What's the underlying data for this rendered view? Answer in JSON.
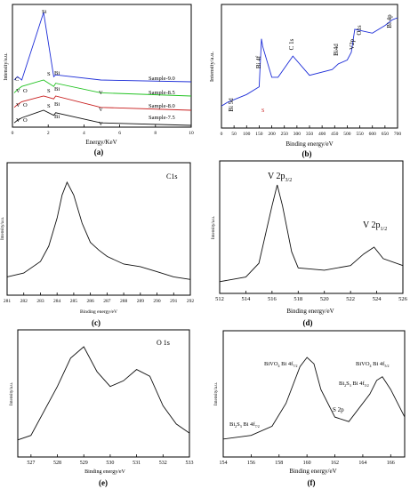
{
  "panels": [
    {
      "id": "a",
      "label": "(a)",
      "type": "line",
      "xlabel": "Energy/KeV",
      "ylabel": "Intensity/a.u.",
      "xlim": [
        0,
        10
      ],
      "xticks": [
        0,
        2,
        4,
        6,
        8,
        10
      ],
      "series": [
        {
          "name": "Sample-9.0",
          "color": "#1f2fd8"
        },
        {
          "name": "Sample-8.5",
          "color": "#22c322"
        },
        {
          "name": "Sample-8.0",
          "color": "#c81d1d"
        },
        {
          "name": "Sample-7.5",
          "color": "#111111"
        }
      ],
      "peak_labels": [
        "Si",
        "S",
        "Bi",
        "C",
        "V",
        "O",
        "V",
        "O",
        "V",
        "O",
        "S",
        "Bi",
        "S",
        "Bi",
        "Bi",
        "V",
        "V",
        "V"
      ]
    },
    {
      "id": "b",
      "label": "(b)",
      "type": "line",
      "xlabel": "Binding energy/eV",
      "ylabel": "Intensity/a.u.",
      "xlim": [
        0,
        700
      ],
      "xticks": [
        0,
        50,
        100,
        150,
        200,
        250,
        300,
        350,
        400,
        450,
        500,
        550,
        600,
        650,
        700
      ],
      "series": [
        {
          "color": "#1f2fd8"
        }
      ],
      "peak_labels": [
        "Bi 5d",
        "Bi 4f",
        "S",
        "C 1s",
        "Bi4d",
        "V2p",
        "O1s",
        "Bi 4p"
      ]
    },
    {
      "id": "c",
      "label": "(c)",
      "title": "C1s",
      "type": "line",
      "xlabel": "Binding energy/eV",
      "ylabel": "Intensity/a.u.",
      "xlim": [
        281,
        292
      ],
      "xticks": [
        281,
        282,
        283,
        284,
        285,
        286,
        287,
        288,
        289,
        290,
        291,
        292
      ],
      "peak_center": 284.6
    },
    {
      "id": "d",
      "label": "(d)",
      "type": "line",
      "xlabel": "Binding energy/eV",
      "ylabel": "Intensity/a.u.",
      "xlim": [
        512,
        526
      ],
      "xticks": [
        512,
        514,
        516,
        518,
        520,
        522,
        524,
        526
      ],
      "peak_labels": [
        {
          "main": "V 2p",
          "sub": "3/2"
        },
        {
          "main": "V 2p",
          "sub": "1/2"
        }
      ]
    },
    {
      "id": "e",
      "label": "(e)",
      "title": "O 1s",
      "type": "line",
      "xlabel": "Binding energy/eV",
      "ylabel": "Intensity/a.u.",
      "xlim": [
        526.5,
        533
      ],
      "xticks": [
        527,
        528,
        529,
        530,
        531,
        532,
        533
      ]
    },
    {
      "id": "f",
      "label": "(f)",
      "type": "line",
      "xlabel": "Binding energy/eV",
      "ylabel": "Intensity/a.u.",
      "xlim": [
        154,
        167
      ],
      "xticks": [
        154,
        156,
        158,
        160,
        162,
        164,
        166
      ],
      "peak_labels": [
        {
          "main": "BiVO",
          "sub": "4",
          "tail": " Bi 4f",
          "sub2": "7/2"
        },
        {
          "main": "BiVO",
          "sub": "4",
          "tail": " Bi 4f",
          "sub2": "5/2"
        },
        {
          "main": "Bi",
          "sub": "2",
          "mid": "S",
          "sub3": "3",
          "tail": " Bi 4f",
          "sub2": "7/2"
        },
        {
          "main": "Bi",
          "sub": "2",
          "mid": "S",
          "sub3": "3",
          "tail": " Bi 4f",
          "sub2": "5/2"
        },
        {
          "main": "S 2p"
        }
      ]
    }
  ],
  "chart_data": [
    {
      "type": "line",
      "panel": "a",
      "xlabel": "Energy/KeV",
      "ylabel": "Intensity/a.u.",
      "xlim": [
        0,
        10
      ],
      "series": [
        {
          "name": "Sample-9.0",
          "x": [
            0.1,
            0.28,
            0.52,
            1.74,
            2.31,
            2.42,
            4.95,
            10
          ],
          "y": [
            1,
            3,
            1,
            40,
            3,
            4,
            1,
            0
          ]
        },
        {
          "name": "Sample-8.5",
          "x": [
            0.1,
            0.28,
            0.52,
            1.74,
            2.31,
            2.42,
            4.95,
            10
          ],
          "y": [
            1,
            2,
            3,
            5,
            3,
            4,
            1,
            0
          ]
        },
        {
          "name": "Sample-8.0",
          "x": [
            0.1,
            0.28,
            0.52,
            1.74,
            2.31,
            2.42,
            4.95,
            10
          ],
          "y": [
            1,
            2,
            3,
            5,
            4,
            5,
            1,
            0
          ]
        },
        {
          "name": "Sample-7.5",
          "x": [
            0.1,
            0.28,
            0.52,
            1.74,
            2.31,
            2.42,
            4.95,
            10
          ],
          "y": [
            1,
            2,
            3,
            6,
            4,
            5,
            1,
            0
          ]
        }
      ]
    },
    {
      "type": "line",
      "panel": "b",
      "xlabel": "Binding energy/eV",
      "ylabel": "Intensity/a.u.",
      "xlim": [
        0,
        700
      ],
      "series": [
        {
          "x": [
            0,
            25,
            100,
            150,
            159,
            164,
            200,
            225,
            284,
            350,
            440,
            465,
            500,
            516,
            530,
            600,
            650,
            680,
            700
          ],
          "y": [
            10,
            14,
            22,
            30,
            80,
            72,
            40,
            40,
            62,
            42,
            48,
            54,
            58,
            66,
            90,
            86,
            94,
            100,
            102
          ]
        }
      ]
    },
    {
      "type": "line",
      "panel": "c",
      "xlabel": "Binding energy/eV",
      "ylabel": "Intensity/a.u.",
      "xlim": [
        281,
        292
      ],
      "series": [
        {
          "name": "raw",
          "x": [
            281,
            282,
            283,
            283.5,
            284,
            284.3,
            284.6,
            285,
            285.5,
            286,
            286.5,
            287,
            288,
            289,
            290,
            291,
            292
          ],
          "y": [
            6,
            9,
            18,
            30,
            52,
            70,
            80,
            70,
            48,
            33,
            27,
            22,
            16,
            14,
            10,
            6,
            4
          ]
        }
      ]
    },
    {
      "type": "line",
      "panel": "d",
      "xlabel": "Binding energy/eV",
      "ylabel": "Intensity/a.u.",
      "xlim": [
        512,
        526
      ],
      "series": [
        {
          "name": "raw",
          "x": [
            512,
            514,
            515,
            516,
            516.4,
            516.8,
            517.5,
            518,
            520,
            522,
            523,
            523.8,
            524.5,
            526
          ],
          "y": [
            4,
            8,
            20,
            70,
            88,
            70,
            30,
            16,
            14,
            18,
            28,
            34,
            24,
            18
          ]
        }
      ]
    },
    {
      "type": "line",
      "panel": "e",
      "xlabel": "Binding energy/eV",
      "ylabel": "Intensity/a.u.",
      "xlim": [
        526.5,
        533
      ],
      "series": [
        {
          "name": "raw",
          "x": [
            526.5,
            527,
            528,
            528.5,
            529,
            529.5,
            530,
            530.5,
            531,
            531.5,
            532,
            532.5,
            533
          ],
          "y": [
            8,
            12,
            55,
            80,
            90,
            68,
            55,
            60,
            70,
            64,
            38,
            22,
            14
          ]
        }
      ]
    },
    {
      "type": "line",
      "panel": "f",
      "xlabel": "Binding energy/eV",
      "ylabel": "Intensity/a.u.",
      "xlim": [
        154,
        167
      ],
      "series": [
        {
          "name": "raw",
          "x": [
            154,
            156,
            157.5,
            158.5,
            159.5,
            160,
            160.5,
            161,
            162,
            163,
            164.5,
            165,
            165.4,
            166,
            167
          ],
          "y": [
            6,
            10,
            20,
            45,
            85,
            95,
            88,
            60,
            30,
            25,
            55,
            70,
            74,
            60,
            30
          ]
        }
      ]
    }
  ]
}
